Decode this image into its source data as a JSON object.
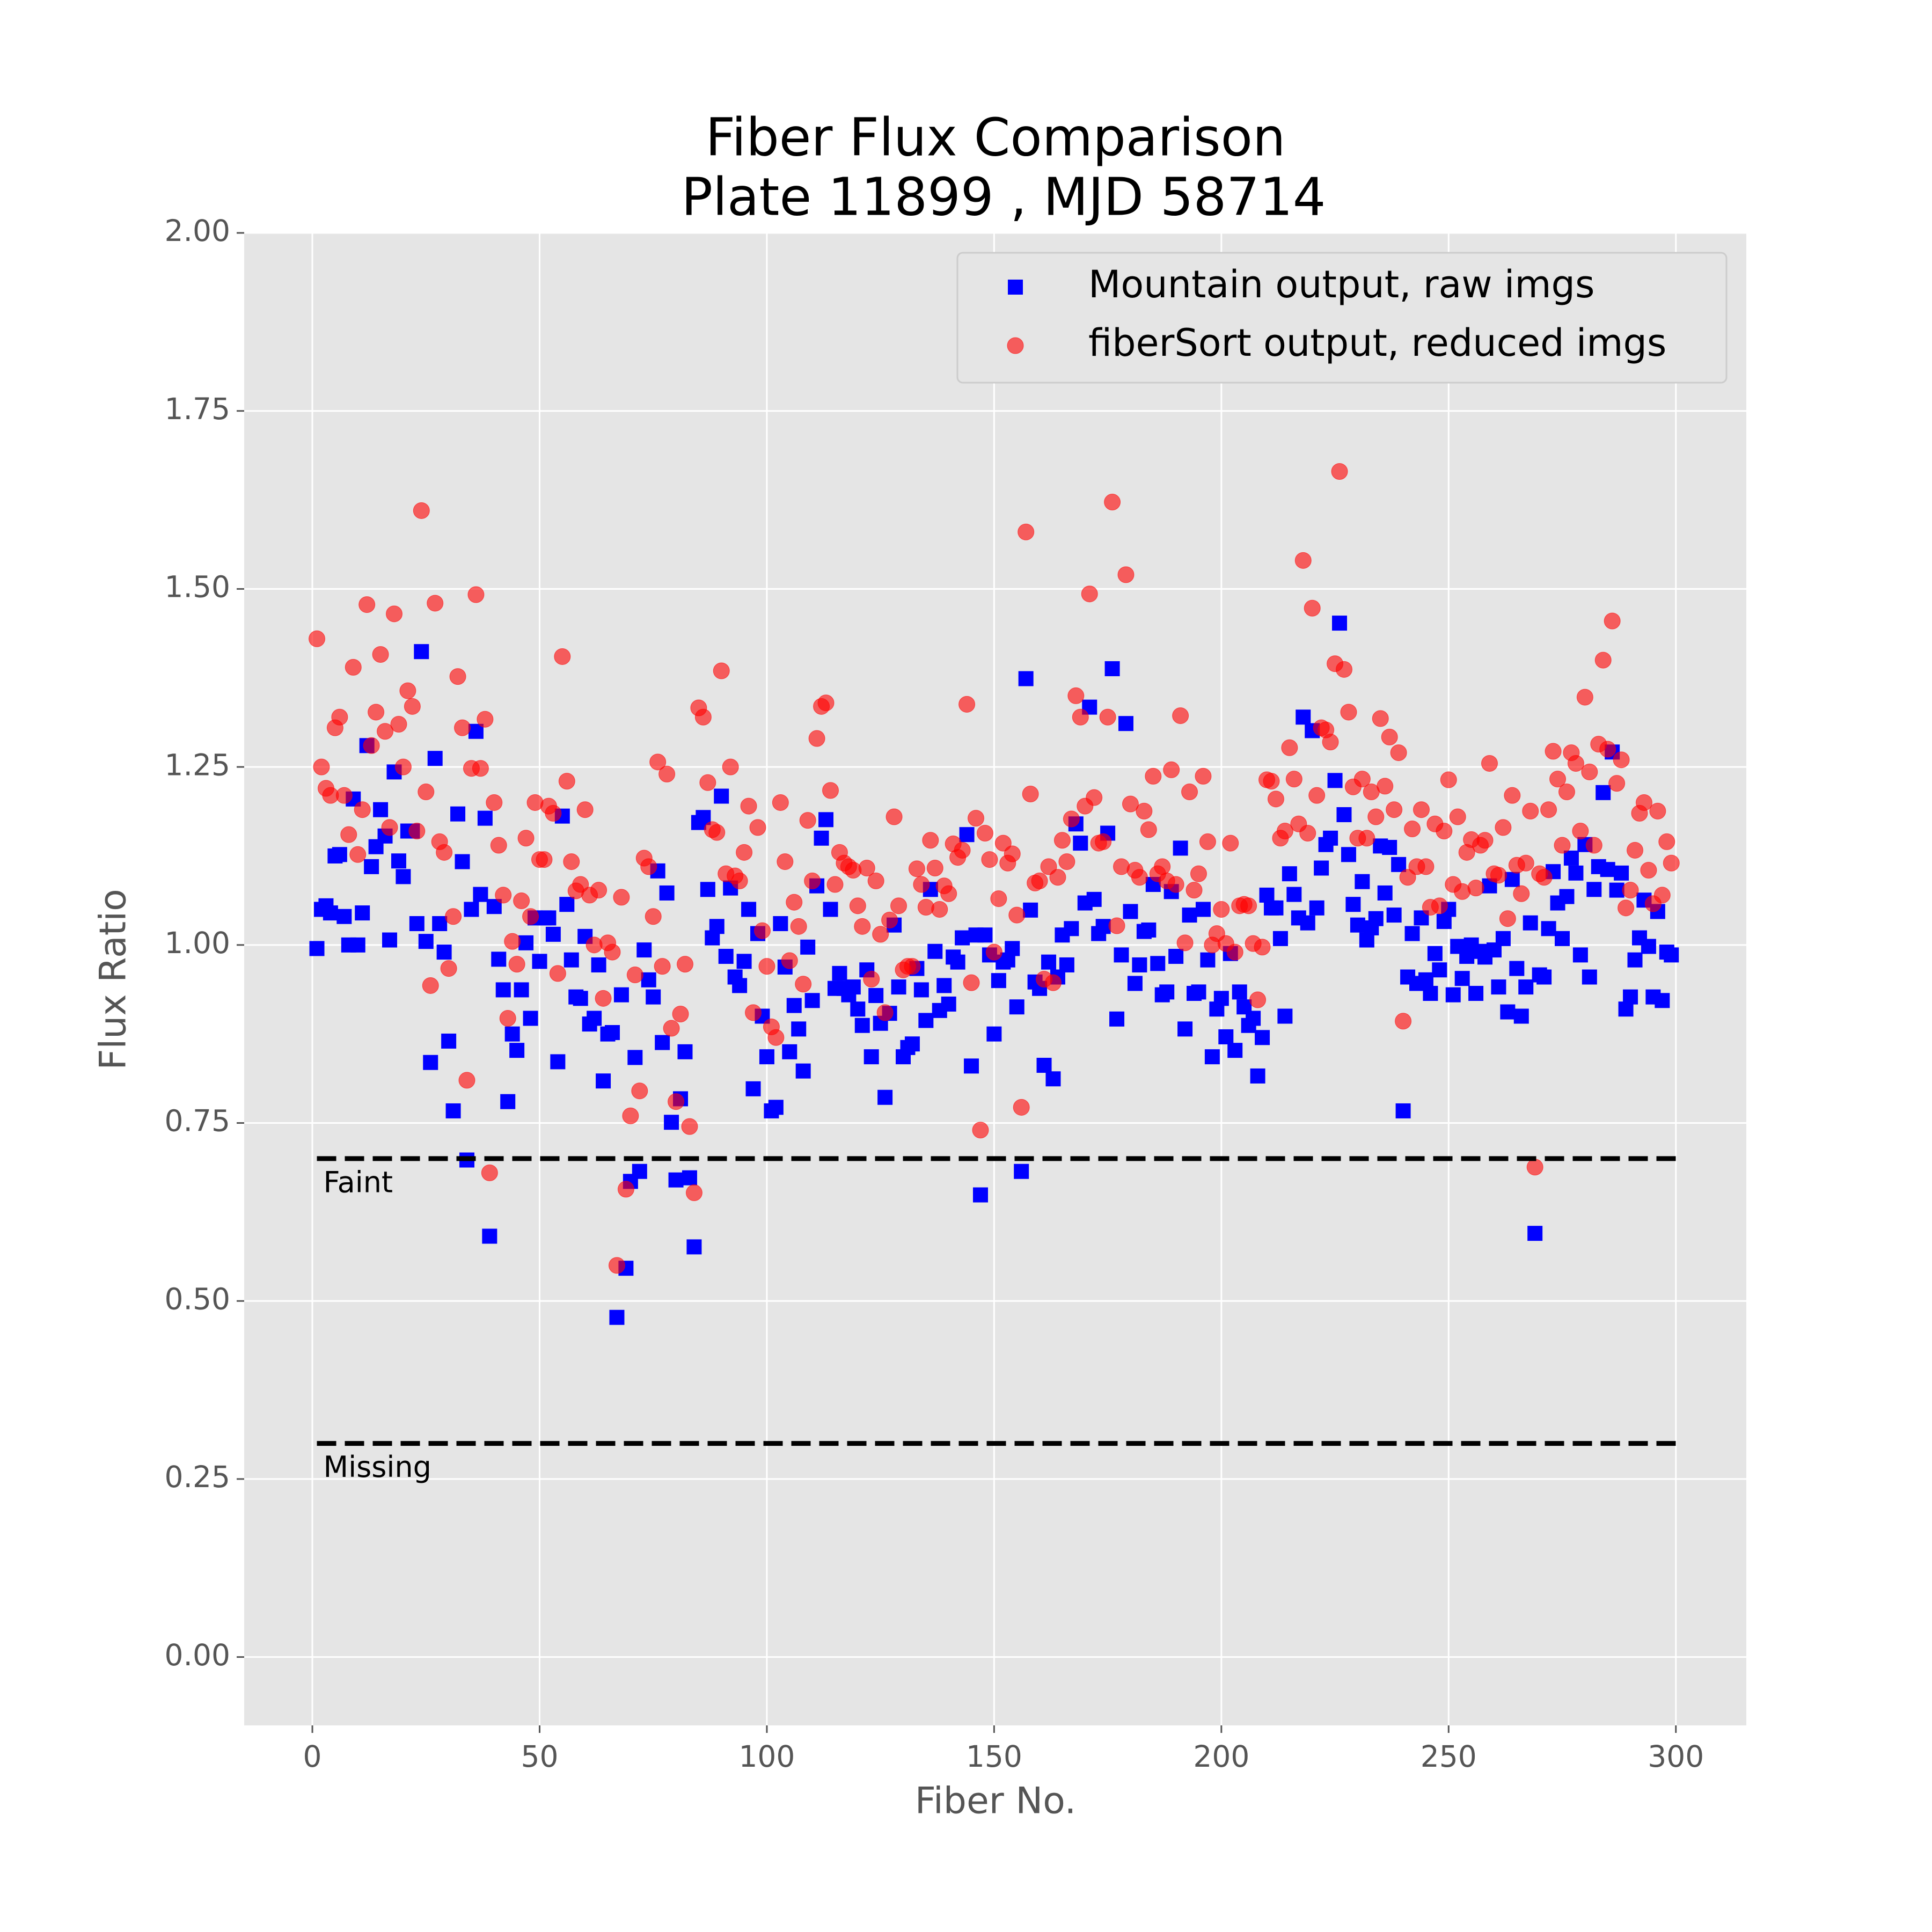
{
  "chart_data": {
    "type": "scatter",
    "title": "Fiber Flux Comparison",
    "subtitle": "Plate 11899 , MJD 58714",
    "x_label": "Fiber No.",
    "y_label": "Flux Ratio",
    "xlim": [
      -15,
      315.5
    ],
    "ylim": [
      -0.096,
      2.0
    ],
    "xticks": [
      0,
      50,
      100,
      150,
      200,
      250,
      300
    ],
    "yticks": [
      {
        "value": 0,
        "label": "0.00"
      },
      {
        "value": 0.25,
        "label": "0.25"
      },
      {
        "value": 0.5,
        "label": "0.50"
      },
      {
        "value": 0.75,
        "label": "0.75"
      },
      {
        "value": 1,
        "label": "1.00"
      },
      {
        "value": 1.25,
        "label": "1.25"
      },
      {
        "value": 1.5,
        "label": "1.50"
      },
      {
        "value": 1.75,
        "label": "1.75"
      },
      {
        "value": 2,
        "label": "2.00"
      }
    ],
    "grid": true,
    "legend": "upper right",
    "hlines": [
      {
        "value": 0.7,
        "label": "Faint"
      },
      {
        "value": 0.3,
        "label": "Missing"
      }
    ],
    "x": [
      1,
      2,
      3,
      4,
      5,
      6,
      7,
      8,
      9,
      10,
      11,
      12,
      13,
      14,
      15,
      16,
      17,
      18,
      19,
      20,
      21,
      22,
      23,
      24,
      25,
      26,
      27,
      28,
      29,
      30,
      31,
      32,
      33,
      34,
      35,
      36,
      37,
      38,
      39,
      40,
      41,
      42,
      43,
      44,
      45,
      46,
      47,
      48,
      49,
      50,
      51,
      52,
      53,
      54,
      55,
      56,
      57,
      58,
      59,
      60,
      61,
      62,
      63,
      64,
      65,
      66,
      67,
      68,
      69,
      70,
      71,
      72,
      73,
      74,
      75,
      76,
      77,
      78,
      79,
      80,
      81,
      82,
      83,
      84,
      85,
      86,
      87,
      88,
      89,
      90,
      91,
      92,
      93,
      94,
      95,
      96,
      97,
      98,
      99,
      100,
      101,
      102,
      103,
      104,
      105,
      106,
      107,
      108,
      109,
      110,
      111,
      112,
      113,
      114,
      115,
      116,
      117,
      118,
      119,
      120,
      121,
      122,
      123,
      124,
      125,
      126,
      127,
      128,
      129,
      130,
      131,
      132,
      133,
      134,
      135,
      136,
      137,
      138,
      139,
      140,
      141,
      142,
      143,
      144,
      145,
      146,
      147,
      148,
      149,
      150,
      151,
      152,
      153,
      154,
      155,
      156,
      157,
      158,
      159,
      160,
      161,
      162,
      163,
      164,
      165,
      166,
      167,
      168,
      169,
      170,
      171,
      172,
      173,
      174,
      175,
      176,
      177,
      178,
      179,
      180,
      181,
      182,
      183,
      184,
      185,
      186,
      187,
      188,
      189,
      190,
      191,
      192,
      193,
      194,
      195,
      196,
      197,
      198,
      199,
      200,
      201,
      202,
      203,
      204,
      205,
      206,
      207,
      208,
      209,
      210,
      211,
      212,
      213,
      214,
      215,
      216,
      217,
      218,
      219,
      220,
      221,
      222,
      223,
      224,
      225,
      226,
      227,
      228,
      229,
      230,
      231,
      232,
      233,
      234,
      235,
      236,
      237,
      238,
      239,
      240,
      241,
      242,
      243,
      244,
      245,
      246,
      247,
      248,
      249,
      250,
      251,
      252,
      253,
      254,
      255,
      256,
      257,
      258,
      259,
      260,
      261,
      262,
      263,
      264,
      265,
      266,
      267,
      268,
      269,
      270,
      271,
      272,
      273,
      274,
      275,
      276,
      277,
      278,
      279,
      280,
      281,
      282,
      283,
      284,
      285,
      286,
      287,
      288,
      289,
      290,
      291,
      292,
      293,
      294,
      295,
      296,
      297,
      298,
      299
    ],
    "series": [
      {
        "name": "Mountain output, raw imgs",
        "color": "#0000ff",
        "marker": "square",
        "opacity": 1,
        "values": [
          0.995,
          1.05,
          1.055,
          1.045,
          1.125,
          1.127,
          1.04,
          1.0,
          1.205,
          1.0,
          1.045,
          1.28,
          1.11,
          1.138,
          1.19,
          1.153,
          1.007,
          1.243,
          1.118,
          1.096,
          1.16,
          1.16,
          1.03,
          1.412,
          1.005,
          0.835,
          1.262,
          1.03,
          0.99,
          0.865,
          0.767,
          1.184,
          1.117,
          0.698,
          1.05,
          1.3,
          1.071,
          1.178,
          0.591,
          1.054,
          0.98,
          0.937,
          0.78,
          0.875,
          0.852,
          0.937,
          1.003,
          0.897,
          1.038,
          0.977,
          1.038,
          1.038,
          1.015,
          0.836,
          1.181,
          1.057,
          0.979,
          0.927,
          0.925,
          1.012,
          0.889,
          0.897,
          0.972,
          0.809,
          0.875,
          0.877,
          0.477,
          0.93,
          0.546,
          0.668,
          0.842,
          0.682,
          0.993,
          0.951,
          0.927,
          1.104,
          0.863,
          1.073,
          0.751,
          0.67,
          0.784,
          0.85,
          0.673,
          0.576,
          1.172,
          1.179,
          1.078,
          1.01,
          1.026,
          1.209,
          0.984,
          1.08,
          0.955,
          0.943,
          0.977,
          1.05,
          0.798,
          1.016,
          0.9,
          0.843,
          0.767,
          0.772,
          1.03,
          0.969,
          0.85,
          0.915,
          0.882,
          0.823,
          0.997,
          0.922,
          1.083,
          1.15,
          1.176,
          1.05,
          0.939,
          0.96,
          0.939,
          0.93,
          0.941,
          0.91,
          0.887,
          0.965,
          0.843,
          0.929,
          0.89,
          0.786,
          0.904,
          1.028,
          0.941,
          0.843,
          0.856,
          0.861,
          0.967,
          0.937,
          0.894,
          1.078,
          0.991,
          0.908,
          0.943,
          0.917,
          0.983,
          0.976,
          1.01,
          1.155,
          0.83,
          1.014,
          0.649,
          1.014,
          0.986,
          0.875,
          0.95,
          0.976,
          0.979,
          0.995,
          0.913,
          0.682,
          1.374,
          1.049,
          0.948,
          0.939,
          0.831,
          0.976,
          0.812,
          0.955,
          1.014,
          0.972,
          1.023,
          1.17,
          1.143,
          1.059,
          1.334,
          1.064,
          1.016,
          1.026,
          1.157,
          1.388,
          0.896,
          0.986,
          1.311,
          1.047,
          0.946,
          0.972,
          1.019,
          1.021,
          1.085,
          0.974,
          0.93,
          0.934,
          1.075,
          0.984,
          1.136,
          0.882,
          1.042,
          0.932,
          0.934,
          1.05,
          0.979,
          0.843,
          0.91,
          0.925,
          0.871,
          0.988,
          0.852,
          0.934,
          0.913,
          0.887,
          0.897,
          0.816,
          0.87,
          1.07,
          1.052,
          1.052,
          1.009,
          0.9,
          1.1,
          1.071,
          1.038,
          1.32,
          1.031,
          1.301,
          1.052,
          1.108,
          1.141,
          1.15,
          1.231,
          1.452,
          1.183,
          1.127,
          1.057,
          1.028,
          1.089,
          1.007,
          1.024,
          1.037,
          1.139,
          1.073,
          1.137,
          1.042,
          1.113,
          0.767,
          0.955,
          1.016,
          0.946,
          1.038,
          0.951,
          0.932,
          0.988,
          0.965,
          1.033,
          1.05,
          0.93,
          0.998,
          0.953,
          0.984,
          1.0,
          0.932,
          0.991,
          0.983,
          1.083,
          0.993,
          0.941,
          1.009,
          0.906,
          1.092,
          0.967,
          0.9,
          0.941,
          1.031,
          0.595,
          0.958,
          0.955,
          1.023,
          1.103,
          1.059,
          1.009,
          1.068,
          1.122,
          1.101,
          0.986,
          1.141,
          0.955,
          1.078,
          1.11,
          1.214,
          1.106,
          1.271,
          1.077,
          1.101,
          0.91,
          0.927,
          0.979,
          1.01,
          1.063,
          0.998,
          0.927,
          1.047,
          0.922,
          0.99,
          0.986
        ]
      },
      {
        "name": "fiberSort output, reduced imgs",
        "color": "#ff0000",
        "marker": "circle",
        "opacity": 0.6,
        "values": [
          1.43,
          1.25,
          1.22,
          1.21,
          1.305,
          1.32,
          1.21,
          1.155,
          1.39,
          1.127,
          1.19,
          1.478,
          1.28,
          1.327,
          1.408,
          1.3,
          1.165,
          1.465,
          1.31,
          1.25,
          1.357,
          1.335,
          1.16,
          1.61,
          1.215,
          0.943,
          1.48,
          1.145,
          1.13,
          0.967,
          1.04,
          1.377,
          1.305,
          0.81,
          1.248,
          1.492,
          1.248,
          1.317,
          0.68,
          1.2,
          1.14,
          1.07,
          0.897,
          1.005,
          0.973,
          1.062,
          1.15,
          1.04,
          1.2,
          1.12,
          1.12,
          1.195,
          1.185,
          0.96,
          1.405,
          1.23,
          1.117,
          1.076,
          1.085,
          1.19,
          1.07,
          1.0,
          1.077,
          0.925,
          1.003,
          0.99,
          0.55,
          1.067,
          0.657,
          0.76,
          0.958,
          0.795,
          1.122,
          1.11,
          1.04,
          1.257,
          0.97,
          1.24,
          0.883,
          0.78,
          0.903,
          0.973,
          0.745,
          0.652,
          1.333,
          1.32,
          1.228,
          1.162,
          1.158,
          1.385,
          1.1,
          1.25,
          1.097,
          1.09,
          1.13,
          1.195,
          0.905,
          1.165,
          1.02,
          0.97,
          0.885,
          0.87,
          1.2,
          1.117,
          0.978,
          1.06,
          1.026,
          0.945,
          1.175,
          1.09,
          1.29,
          1.335,
          1.34,
          1.217,
          1.085,
          1.13,
          1.115,
          1.11,
          1.105,
          1.055,
          1.026,
          1.108,
          0.952,
          1.09,
          1.015,
          0.905,
          1.035,
          1.18,
          1.055,
          0.965,
          0.97,
          0.97,
          1.107,
          1.085,
          1.053,
          1.147,
          1.108,
          1.05,
          1.083,
          1.072,
          1.142,
          1.123,
          1.133,
          1.338,
          0.947,
          1.178,
          0.74,
          1.157,
          1.12,
          0.99,
          1.065,
          1.143,
          1.115,
          1.128,
          1.042,
          0.772,
          1.58,
          1.212,
          1.087,
          1.09,
          0.952,
          1.11,
          0.947,
          1.095,
          1.147,
          1.117,
          1.177,
          1.35,
          1.32,
          1.195,
          1.493,
          1.207,
          1.143,
          1.145,
          1.32,
          1.622,
          1.027,
          1.11,
          1.52,
          1.198,
          1.105,
          1.095,
          1.188,
          1.162,
          1.237,
          1.1,
          1.11,
          1.09,
          1.246,
          1.085,
          1.322,
          1.003,
          1.215,
          1.077,
          1.1,
          1.237,
          1.145,
          1.0,
          1.016,
          1.05,
          1.002,
          1.143,
          0.99,
          1.055,
          1.057,
          1.055,
          1.002,
          0.923,
          0.997,
          1.232,
          1.23,
          1.205,
          1.15,
          1.16,
          1.277,
          1.233,
          1.17,
          1.54,
          1.157,
          1.473,
          1.21,
          1.305,
          1.302,
          1.285,
          1.395,
          1.665,
          1.387,
          1.327,
          1.222,
          1.15,
          1.233,
          1.15,
          1.215,
          1.18,
          1.318,
          1.223,
          1.292,
          1.19,
          1.27,
          0.893,
          1.095,
          1.163,
          1.11,
          1.19,
          1.11,
          1.053,
          1.17,
          1.055,
          1.16,
          1.232,
          1.085,
          1.18,
          1.075,
          1.13,
          1.148,
          1.08,
          1.14,
          1.147,
          1.255,
          1.1,
          1.098,
          1.165,
          1.037,
          1.21,
          1.112,
          1.072,
          1.115,
          1.188,
          0.688,
          1.1,
          1.095,
          1.19,
          1.272,
          1.233,
          1.14,
          1.215,
          1.27,
          1.255,
          1.16,
          1.348,
          1.243,
          1.14,
          1.282,
          1.4,
          1.275,
          1.455,
          1.227,
          1.26,
          1.052,
          1.077,
          1.133,
          1.185,
          1.2,
          1.105,
          1.058,
          1.188,
          1.07,
          1.145,
          1.115
        ]
      }
    ]
  }
}
